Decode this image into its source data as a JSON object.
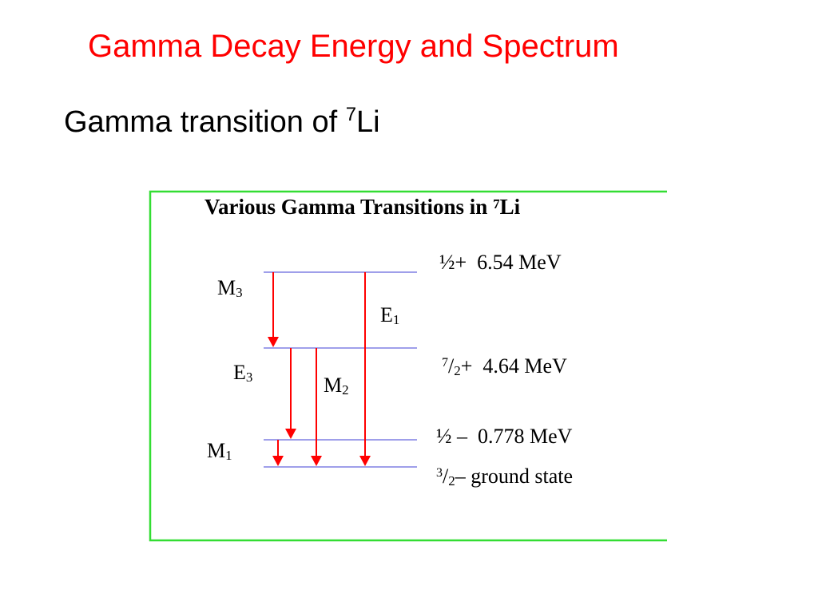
{
  "slide": {
    "title": "Gamma Decay Energy and Spectrum",
    "subtitle_text": "Gamma transition of ",
    "subtitle_sup": "7",
    "subtitle_element": "Li"
  },
  "diagram": {
    "title_text": "Various Gamma Transitions in ",
    "title_sup": "7",
    "title_element": "Li",
    "border_color": "#33dd33",
    "level_color": "#6666dd",
    "arrow_color": "#ff0000",
    "levels": [
      {
        "spin": "½+",
        "energy": "6.54 MeV"
      },
      {
        "spin_num": "7",
        "spin_den": "2",
        "parity": "+",
        "energy": "4.64 MeV"
      },
      {
        "spin": "½ –",
        "energy": "0.778 MeV"
      },
      {
        "spin_num": "3",
        "spin_den": "2",
        "parity": "–",
        "energy": "ground state"
      }
    ],
    "transitions": [
      {
        "type": "M",
        "order": "3",
        "from": "6.54 MeV",
        "to": "4.64 MeV"
      },
      {
        "type": "E",
        "order": "1",
        "from": "6.54 MeV",
        "to": "ground state"
      },
      {
        "type": "E",
        "order": "3",
        "from": "4.64 MeV",
        "to": "0.778 MeV"
      },
      {
        "type": "M",
        "order": "2",
        "from": "4.64 MeV",
        "to": "ground state"
      },
      {
        "type": "M",
        "order": "1",
        "from": "0.778 MeV",
        "to": "ground state"
      }
    ]
  }
}
